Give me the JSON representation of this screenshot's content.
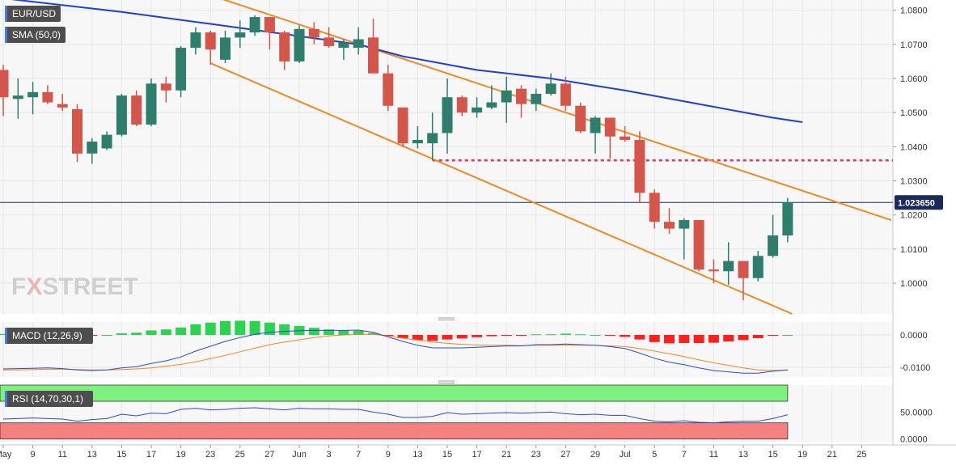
{
  "chart_data": {
    "type": "candlestick",
    "symbol": "EUR/USD",
    "current_price_label": "1.023650",
    "colors": {
      "up": "#2f7d6d",
      "down": "#d4554a",
      "sma": "#1f3fd6",
      "trendline": "#f08a24",
      "support": "#e0335c",
      "macd_line": "#2a4cd0",
      "signal_line": "#f08a24",
      "macd_hist_up": "#2bd34f",
      "macd_hist_down": "#ff1f1f",
      "rsi_overbought": "#7ef07e",
      "rsi_oversold": "#f48080",
      "rsi_line": "#2a4cd0"
    },
    "price_axis": {
      "ticks": [
        "1.0800",
        "1.0700",
        "1.0600",
        "1.0500",
        "1.0400",
        "1.0300",
        "1.0200",
        "1.0100",
        "1.0000"
      ],
      "ylim": [
        0.991,
        1.083
      ]
    },
    "x_tick_labels": [
      "May",
      "9",
      "11",
      "13",
      "15",
      "17",
      "19",
      "23",
      "25",
      "27",
      "Jun",
      "3",
      "7",
      "9",
      "13",
      "15",
      "17",
      "21",
      "23",
      "27",
      "29",
      "Jul",
      "5",
      "7",
      "11",
      "13",
      "15",
      "19",
      "21",
      "25"
    ],
    "candles": [
      {
        "date": "May 5",
        "o": 1.0625,
        "h": 1.064,
        "l": 1.049,
        "c": 1.0545
      },
      {
        "date": "May 6",
        "o": 1.054,
        "h": 1.06,
        "l": 1.0482,
        "c": 1.055
      },
      {
        "date": "May 9",
        "o": 1.0545,
        "h": 1.059,
        "l": 1.0495,
        "c": 1.056
      },
      {
        "date": "May 10",
        "o": 1.056,
        "h": 1.058,
        "l": 1.0525,
        "c": 1.053
      },
      {
        "date": "May 11",
        "o": 1.0525,
        "h": 1.0555,
        "l": 1.0505,
        "c": 1.0515
      },
      {
        "date": "May 12",
        "o": 1.051,
        "h": 1.0525,
        "l": 1.0355,
        "c": 1.038
      },
      {
        "date": "May 13",
        "o": 1.038,
        "h": 1.0425,
        "l": 1.035,
        "c": 1.0415
      },
      {
        "date": "May 16",
        "o": 1.0395,
        "h": 1.0445,
        "l": 1.039,
        "c": 1.0435
      },
      {
        "date": "May 17",
        "o": 1.0435,
        "h": 1.0555,
        "l": 1.043,
        "c": 1.055
      },
      {
        "date": "May 18",
        "o": 1.055,
        "h": 1.0565,
        "l": 1.046,
        "c": 1.0465
      },
      {
        "date": "May 19",
        "o": 1.0465,
        "h": 1.06,
        "l": 1.046,
        "c": 1.0585
      },
      {
        "date": "May 20",
        "o": 1.0585,
        "h": 1.0605,
        "l": 1.053,
        "c": 1.0565
      },
      {
        "date": "May 23",
        "o": 1.0565,
        "h": 1.0695,
        "l": 1.0545,
        "c": 1.069
      },
      {
        "date": "May 24",
        "o": 1.069,
        "h": 1.075,
        "l": 1.067,
        "c": 1.0735
      },
      {
        "date": "May 25",
        "o": 1.0735,
        "h": 1.074,
        "l": 1.064,
        "c": 1.0685
      },
      {
        "date": "May 26",
        "o": 1.0655,
        "h": 1.074,
        "l": 1.0645,
        "c": 1.072
      },
      {
        "date": "May 27",
        "o": 1.072,
        "h": 1.077,
        "l": 1.069,
        "c": 1.0735
      },
      {
        "date": "May 30",
        "o": 1.0735,
        "h": 1.0785,
        "l": 1.0725,
        "c": 1.078
      },
      {
        "date": "May 31",
        "o": 1.078,
        "h": 1.078,
        "l": 1.0685,
        "c": 1.0735
      },
      {
        "date": "Jun 1",
        "o": 1.0735,
        "h": 1.074,
        "l": 1.0625,
        "c": 1.065
      },
      {
        "date": "Jun 2",
        "o": 1.065,
        "h": 1.0755,
        "l": 1.0645,
        "c": 1.0745
      },
      {
        "date": "Jun 3",
        "o": 1.0745,
        "h": 1.0765,
        "l": 1.07,
        "c": 1.072
      },
      {
        "date": "Jun 6",
        "o": 1.072,
        "h": 1.075,
        "l": 1.069,
        "c": 1.0695
      },
      {
        "date": "Jun 7",
        "o": 1.069,
        "h": 1.0715,
        "l": 1.0655,
        "c": 1.0705
      },
      {
        "date": "Jun 8",
        "o": 1.069,
        "h": 1.075,
        "l": 1.067,
        "c": 1.0715
      },
      {
        "date": "Jun 9",
        "o": 1.072,
        "h": 1.0775,
        "l": 1.0615,
        "c": 1.0615
      },
      {
        "date": "Jun 10",
        "o": 1.0615,
        "h": 1.064,
        "l": 1.0505,
        "c": 1.052
      },
      {
        "date": "Jun 13",
        "o": 1.0515,
        "h": 1.0515,
        "l": 1.04,
        "c": 1.041
      },
      {
        "date": "Jun 14",
        "o": 1.041,
        "h": 1.046,
        "l": 1.0395,
        "c": 1.042
      },
      {
        "date": "Jun 15",
        "o": 1.041,
        "h": 1.05,
        "l": 1.036,
        "c": 1.044
      },
      {
        "date": "Jun 16",
        "o": 1.044,
        "h": 1.06,
        "l": 1.038,
        "c": 1.0545
      },
      {
        "date": "Jun 17",
        "o": 1.0545,
        "h": 1.055,
        "l": 1.049,
        "c": 1.05
      },
      {
        "date": "Jun 20",
        "o": 1.05,
        "h": 1.0545,
        "l": 1.0485,
        "c": 1.0515
      },
      {
        "date": "Jun 21",
        "o": 1.0515,
        "h": 1.058,
        "l": 1.051,
        "c": 1.053
      },
      {
        "date": "Jun 22",
        "o": 1.053,
        "h": 1.0605,
        "l": 1.047,
        "c": 1.0565
      },
      {
        "date": "Jun 23",
        "o": 1.057,
        "h": 1.058,
        "l": 1.0485,
        "c": 1.0525
      },
      {
        "date": "Jun 24",
        "o": 1.0525,
        "h": 1.057,
        "l": 1.0505,
        "c": 1.0555
      },
      {
        "date": "Jun 27",
        "o": 1.0555,
        "h": 1.0615,
        "l": 1.055,
        "c": 1.0585
      },
      {
        "date": "Jun 28",
        "o": 1.0585,
        "h": 1.0605,
        "l": 1.0505,
        "c": 1.052
      },
      {
        "date": "Jun 29",
        "o": 1.052,
        "h": 1.053,
        "l": 1.044,
        "c": 1.0445
      },
      {
        "date": "Jun 30",
        "o": 1.044,
        "h": 1.049,
        "l": 1.038,
        "c": 1.0485
      },
      {
        "date": "Jul 1",
        "o": 1.0485,
        "h": 1.0485,
        "l": 1.0365,
        "c": 1.043
      },
      {
        "date": "Jul 4",
        "o": 1.043,
        "h": 1.046,
        "l": 1.0415,
        "c": 1.042
      },
      {
        "date": "Jul 5",
        "o": 1.042,
        "h": 1.0445,
        "l": 1.0235,
        "c": 1.0265
      },
      {
        "date": "Jul 6",
        "o": 1.0265,
        "h": 1.0275,
        "l": 1.016,
        "c": 1.018
      },
      {
        "date": "Jul 7",
        "o": 1.018,
        "h": 1.022,
        "l": 1.0145,
        "c": 1.016
      },
      {
        "date": "Jul 8",
        "o": 1.016,
        "h": 1.019,
        "l": 1.007,
        "c": 1.0185
      },
      {
        "date": "Jul 11",
        "o": 1.0185,
        "h": 1.0185,
        "l": 1.0035,
        "c": 1.004
      },
      {
        "date": "Jul 12",
        "o": 1.004,
        "h": 1.007,
        "l": 1.0,
        "c": 1.0035
      },
      {
        "date": "Jul 13",
        "o": 1.0035,
        "h": 1.012,
        "l": 0.9995,
        "c": 1.0065
      },
      {
        "date": "Jul 14",
        "o": 1.0065,
        "h": 1.0065,
        "l": 0.995,
        "c": 1.0015
      },
      {
        "date": "Jul 15",
        "o": 1.0015,
        "h": 1.0095,
        "l": 1.0005,
        "c": 1.008
      },
      {
        "date": "Jul 18",
        "o": 1.008,
        "h": 1.02,
        "l": 1.0075,
        "c": 1.014
      },
      {
        "date": "Jul 19",
        "o": 1.014,
        "h": 1.025,
        "l": 1.012,
        "c": 1.0237
      }
    ],
    "sma": {
      "label": "SMA (50,0)",
      "points": [
        [
          0,
          1.0835
        ],
        [
          8,
          1.0795
        ],
        [
          14,
          1.076
        ],
        [
          19,
          1.073
        ],
        [
          24,
          1.07
        ],
        [
          27,
          1.0665
        ],
        [
          32,
          1.0625
        ],
        [
          37,
          1.06
        ],
        [
          42,
          1.0565
        ],
        [
          47,
          1.0525
        ],
        [
          52,
          1.0485
        ],
        [
          54,
          1.0472
        ]
      ]
    },
    "trendlines": [
      {
        "from": [
          11.5,
          1.088
        ],
        "to": [
          60,
          1.0185
        ]
      },
      {
        "from": [
          14,
          1.0645
        ],
        "to": [
          53.3,
          0.991
        ]
      }
    ],
    "support_level": {
      "value": 1.036,
      "from_index": 29
    },
    "macd": {
      "label": "MACD (12,26,9)",
      "ticks": [
        "0.0000",
        "-0.0100"
      ],
      "ylim": [
        -0.013,
        0.004
      ],
      "macd_line": [
        -0.0105,
        -0.0104,
        -0.0103,
        -0.0102,
        -0.0104,
        -0.0108,
        -0.011,
        -0.0108,
        -0.0102,
        -0.0098,
        -0.0088,
        -0.008,
        -0.0068,
        -0.005,
        -0.0035,
        -0.002,
        -0.0008,
        0.0002,
        0.0008,
        0.0011,
        0.0013,
        0.0014,
        0.0014,
        0.0014,
        0.0015,
        0.0008,
        -0.0006,
        -0.002,
        -0.0032,
        -0.004,
        -0.004,
        -0.004,
        -0.0038,
        -0.0036,
        -0.0034,
        -0.0034,
        -0.003,
        -0.003,
        -0.0028,
        -0.003,
        -0.0032,
        -0.0036,
        -0.0042,
        -0.0056,
        -0.0072,
        -0.0084,
        -0.0092,
        -0.0102,
        -0.011,
        -0.0114,
        -0.0118,
        -0.0118,
        -0.0112,
        -0.0108
      ],
      "signal_line": [
        -0.0108,
        -0.0108,
        -0.0107,
        -0.0106,
        -0.0106,
        -0.0107,
        -0.0108,
        -0.0108,
        -0.0107,
        -0.0105,
        -0.0102,
        -0.0097,
        -0.0091,
        -0.0083,
        -0.0073,
        -0.0063,
        -0.0052,
        -0.0041,
        -0.003,
        -0.0022,
        -0.0015,
        -0.0008,
        -0.0003,
        0.0,
        0.0002,
        0.0002,
        -0.0003,
        -0.001,
        -0.0016,
        -0.0022,
        -0.0026,
        -0.0029,
        -0.0031,
        -0.0032,
        -0.0032,
        -0.0033,
        -0.0032,
        -0.0032,
        -0.0032,
        -0.0032,
        -0.0032,
        -0.0034,
        -0.0036,
        -0.0042,
        -0.005,
        -0.0058,
        -0.0067,
        -0.0077,
        -0.0086,
        -0.0094,
        -0.0102,
        -0.0108,
        -0.011,
        -0.0108
      ],
      "histogram": [
        0.0003,
        0.0004,
        0.0004,
        0.0004,
        0.0002,
        -0.0001,
        -0.0002,
        0.0,
        0.0005,
        0.0007,
        0.0014,
        0.0017,
        0.0023,
        0.0033,
        0.0038,
        0.0043,
        0.0044,
        0.0043,
        0.0038,
        0.0033,
        0.0028,
        0.0022,
        0.0017,
        0.0014,
        0.0013,
        0.0006,
        -0.0003,
        -0.001,
        -0.0016,
        -0.0018,
        -0.0014,
        -0.0011,
        -0.0007,
        -0.0004,
        -0.0002,
        -0.0001,
        0.0002,
        0.0002,
        0.0004,
        0.0002,
        0.0,
        -0.0002,
        -0.0006,
        -0.0014,
        -0.0022,
        -0.0026,
        -0.0025,
        -0.0025,
        -0.0024,
        -0.002,
        -0.0016,
        -0.001,
        -0.0002,
        0.0
      ]
    },
    "rsi": {
      "label": "RSI (14,70,30,1)",
      "ticks": [
        "50.0000",
        "0.0000"
      ],
      "ylim": [
        -5,
        100
      ],
      "upper_band": 70,
      "lower_band": 30,
      "values": [
        37,
        38,
        39,
        38,
        37,
        33,
        36,
        38,
        46,
        43,
        48,
        47,
        55,
        57,
        54,
        55,
        57,
        58,
        56,
        54,
        57,
        56,
        56,
        55,
        55,
        50,
        46,
        40,
        40,
        42,
        49,
        46,
        47,
        48,
        49,
        48,
        49,
        50,
        47,
        45,
        46,
        44,
        44,
        38,
        33,
        32,
        34,
        31,
        30,
        32,
        33,
        33,
        38,
        45
      ]
    }
  }
}
